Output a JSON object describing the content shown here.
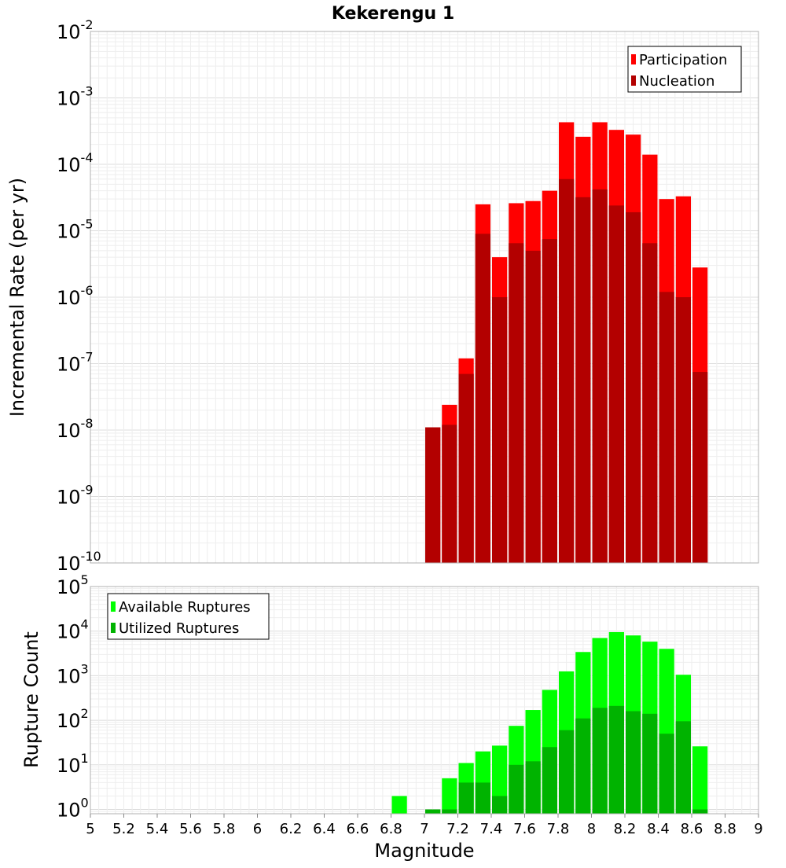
{
  "chart_data": [
    {
      "type": "bar",
      "title": "Kekerengu 1",
      "xlabel": "",
      "ylabel": "Incremental Rate (per yr)",
      "y_scale": "log",
      "ylim": [
        1e-10,
        0.01
      ],
      "xlim": [
        5,
        9
      ],
      "bar_width": 0.1,
      "grid": true,
      "legend_position": "top-right",
      "overlay": true,
      "series": [
        {
          "name": "Participation",
          "color": "#ff0000",
          "x": [
            7.05,
            7.15,
            7.25,
            7.35,
            7.45,
            7.55,
            7.65,
            7.75,
            7.85,
            7.95,
            8.05,
            8.15,
            8.25,
            8.35,
            8.45,
            8.55,
            8.65
          ],
          "values": [
            1.1e-08,
            2.4e-08,
            1.2e-07,
            2.5e-05,
            4e-06,
            2.6e-05,
            2.8e-05,
            4e-05,
            0.00043,
            0.00026,
            0.00043,
            0.00033,
            0.00028,
            0.00014,
            3e-05,
            3.3e-05,
            2.8e-06
          ]
        },
        {
          "name": "Nucleation",
          "color": "#b30000",
          "x": [
            7.05,
            7.15,
            7.25,
            7.35,
            7.45,
            7.55,
            7.65,
            7.75,
            7.85,
            7.95,
            8.05,
            8.15,
            8.25,
            8.35,
            8.45,
            8.55,
            8.65
          ],
          "values": [
            1.1e-08,
            1.2e-08,
            7e-08,
            9e-06,
            1e-06,
            6.5e-06,
            5e-06,
            7.5e-06,
            6e-05,
            3.2e-05,
            4.2e-05,
            2.4e-05,
            1.9e-05,
            6.5e-06,
            1.2e-06,
            1e-06,
            7.5e-08
          ]
        }
      ]
    },
    {
      "type": "bar",
      "title": "",
      "xlabel": "Magnitude",
      "ylabel": "Rupture Count",
      "y_scale": "log",
      "ylim": [
        0.8,
        100000
      ],
      "xlim": [
        5,
        9
      ],
      "bar_width": 0.1,
      "grid": true,
      "legend_position": "top-left",
      "overlay": true,
      "x_ticks": [
        "5",
        "5.2",
        "5.4",
        "5.6",
        "5.8",
        "6",
        "6.2",
        "6.4",
        "6.6",
        "6.8",
        "7",
        "7.2",
        "7.4",
        "7.6",
        "7.8",
        "8",
        "8.2",
        "8.4",
        "8.6",
        "8.8",
        "9"
      ],
      "series": [
        {
          "name": "Available Ruptures",
          "color": "#00ff00",
          "x": [
            6.85,
            7.05,
            7.15,
            7.25,
            7.35,
            7.45,
            7.55,
            7.65,
            7.75,
            7.85,
            7.95,
            8.05,
            8.15,
            8.25,
            8.35,
            8.45,
            8.55,
            8.65
          ],
          "values": [
            2,
            1,
            5,
            11,
            20,
            27,
            75,
            170,
            480,
            1250,
            3400,
            7000,
            9500,
            8000,
            5800,
            4000,
            1050,
            26
          ]
        },
        {
          "name": "Utilized Ruptures",
          "color": "#00b300",
          "x": [
            6.85,
            7.05,
            7.15,
            7.25,
            7.35,
            7.45,
            7.55,
            7.65,
            7.75,
            7.85,
            7.95,
            8.05,
            8.15,
            8.25,
            8.35,
            8.45,
            8.55,
            8.65
          ],
          "values": [
            0,
            1,
            1,
            4,
            4,
            2,
            10,
            12,
            25,
            60,
            110,
            190,
            210,
            160,
            140,
            50,
            95,
            1
          ]
        }
      ]
    }
  ]
}
